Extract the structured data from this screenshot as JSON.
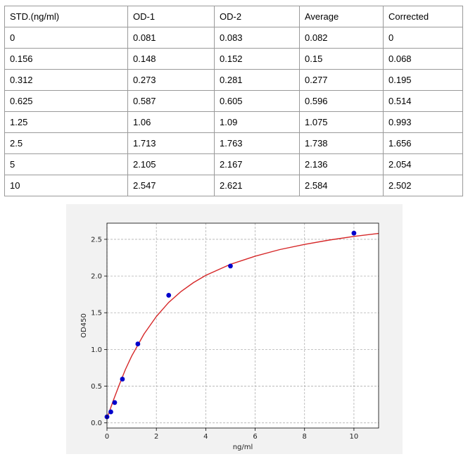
{
  "table": {
    "headers": [
      "STD.(ng/ml)",
      "OD-1",
      "OD-2",
      "Average",
      "Corrected"
    ],
    "rows": [
      [
        "0",
        "0.081",
        "0.083",
        "0.082",
        "0"
      ],
      [
        "0.156",
        "0.148",
        "0.152",
        "0.15",
        "0.068"
      ],
      [
        "0.312",
        "0.273",
        "0.281",
        "0.277",
        "0.195"
      ],
      [
        "0.625",
        "0.587",
        "0.605",
        "0.596",
        "0.514"
      ],
      [
        "1.25",
        "1.06",
        "1.09",
        "1.075",
        "0.993"
      ],
      [
        "2.5",
        "1.713",
        "1.763",
        "1.738",
        "1.656"
      ],
      [
        "5",
        "2.105",
        "2.167",
        "2.136",
        "2.054"
      ],
      [
        "10",
        "2.547",
        "2.621",
        "2.584",
        "2.502"
      ]
    ]
  },
  "chart_data": {
    "type": "scatter",
    "xlabel": "ng/ml",
    "ylabel": "OD450",
    "xlim": [
      0,
      11
    ],
    "ylim": [
      -0.07,
      2.72
    ],
    "xticks": [
      0,
      2,
      4,
      6,
      8,
      10
    ],
    "xtick_labels": [
      "0",
      "2",
      "4",
      "6",
      "8",
      "10"
    ],
    "yticks": [
      0.0,
      0.5,
      1.0,
      1.5,
      2.0,
      2.5
    ],
    "ytick_labels": [
      "0.0",
      "0.5",
      "1.0",
      "1.5",
      "2.0",
      "2.5"
    ],
    "grid": true,
    "series": [
      {
        "kind": "points",
        "color": "#0000cc",
        "x": [
          0,
          0.156,
          0.312,
          0.625,
          1.25,
          2.5,
          5,
          10
        ],
        "y": [
          0.082,
          0.15,
          0.277,
          0.596,
          1.075,
          1.738,
          2.136,
          2.584
        ]
      },
      {
        "kind": "fitted-curve",
        "color": "#d62728",
        "x": [
          0,
          0.25,
          0.5,
          0.75,
          1,
          1.5,
          2,
          2.5,
          3,
          3.5,
          4,
          5,
          6,
          7,
          8,
          9,
          10,
          11
        ],
        "y": [
          0.06,
          0.3,
          0.52,
          0.73,
          0.91,
          1.21,
          1.45,
          1.64,
          1.79,
          1.91,
          2.01,
          2.16,
          2.27,
          2.36,
          2.43,
          2.49,
          2.54,
          2.58
        ]
      }
    ]
  }
}
